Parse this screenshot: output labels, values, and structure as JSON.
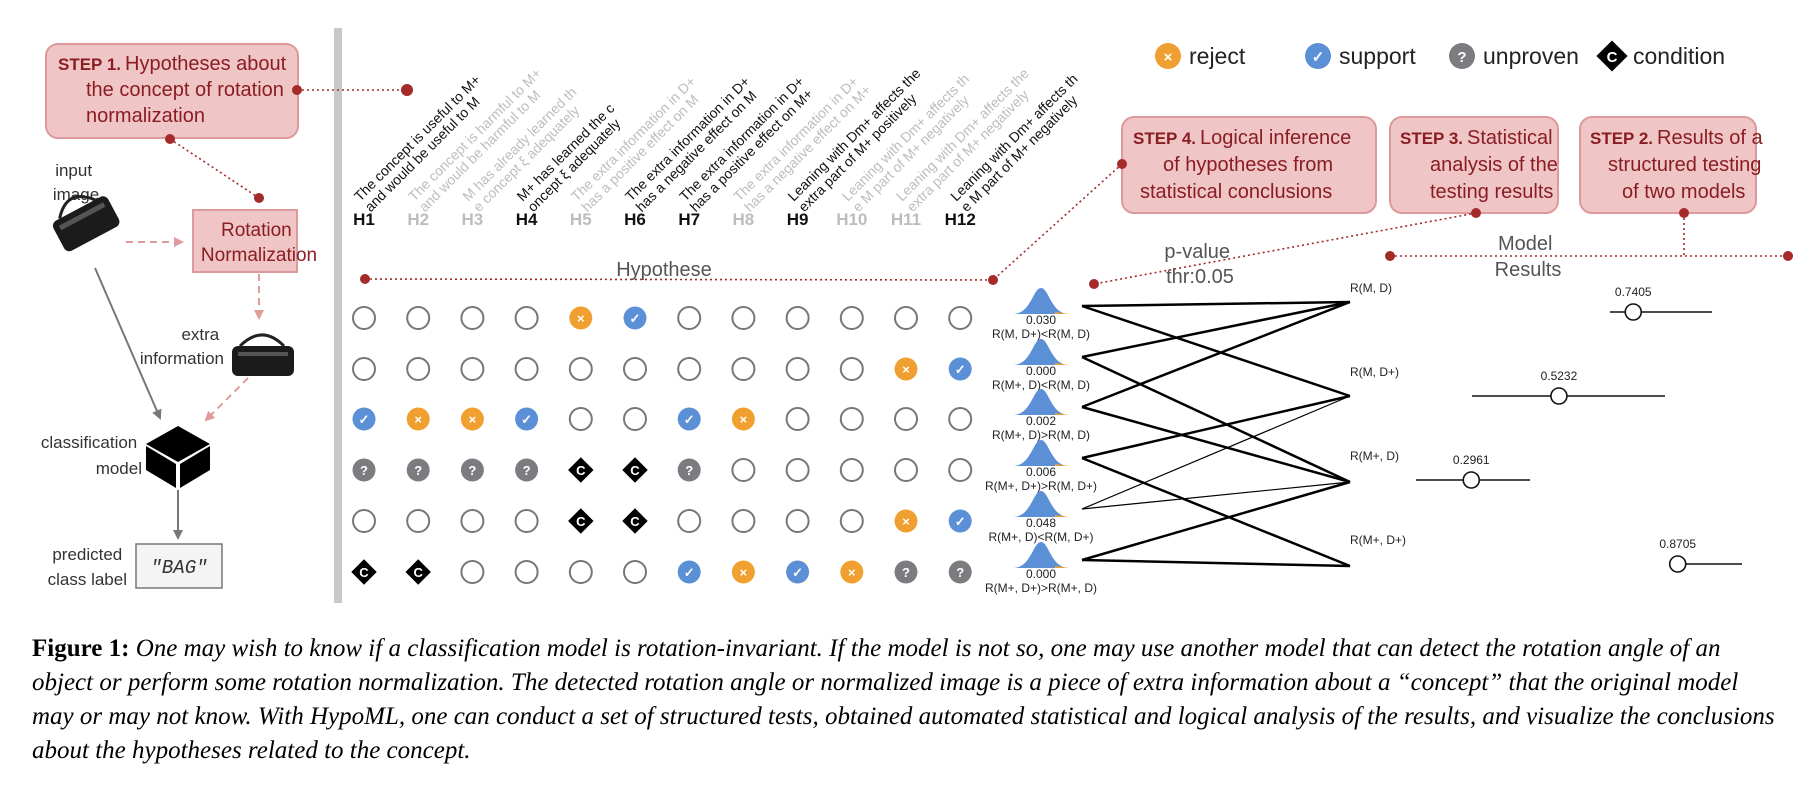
{
  "figure": {
    "legend": [
      {
        "key": "reject",
        "label": "reject",
        "glyph": "×",
        "color": "#f0a030"
      },
      {
        "key": "support",
        "label": "support",
        "glyph": "✓",
        "color": "#5b8fd6"
      },
      {
        "key": "unproven",
        "label": "unproven",
        "glyph": "?",
        "color": "#7c7c80"
      },
      {
        "key": "condition",
        "label": "condition",
        "glyph": "C",
        "color": "#000000"
      }
    ],
    "steps": {
      "step1": {
        "num": "STEP 1.",
        "lines": [
          "Hypotheses about",
          "the concept of rotation",
          "normalization"
        ]
      },
      "step2": {
        "num": "STEP 2.",
        "lines": [
          "Results of a",
          "structured testing",
          "of two models"
        ]
      },
      "step3": {
        "num": "STEP 3.",
        "lines": [
          "Statistical",
          "analysis of the",
          "testing results"
        ]
      },
      "step4": {
        "num": "STEP 4.",
        "lines": [
          "Logical inference",
          "of hypotheses from",
          "statistical conclusions"
        ]
      }
    },
    "pipeline": {
      "input_image": [
        "input",
        "image"
      ],
      "rotation_box": [
        "Rotation",
        "Normalization"
      ],
      "extra_information": [
        "extra",
        "information"
      ],
      "classification_model": [
        "classification",
        "model"
      ],
      "predicted_label": [
        "predicted",
        "class label"
      ],
      "label_value": "\"BAG\""
    },
    "hypotheses": [
      {
        "id": "H1",
        "active": true,
        "text": [
          "The concept is useful to M+",
          "and would be useful to M"
        ]
      },
      {
        "id": "H2",
        "active": false,
        "text": [
          "The concept is harmful to M+",
          "and would be harmful to M"
        ]
      },
      {
        "id": "H3",
        "active": false,
        "text": [
          "M has already learned th",
          "e concept ξ adequately"
        ]
      },
      {
        "id": "H4",
        "active": true,
        "text": [
          "M+ has learned the c",
          "oncept ξ adequately"
        ]
      },
      {
        "id": "H5",
        "active": false,
        "text": [
          "The extra information in D+",
          "has a positive effect on M"
        ]
      },
      {
        "id": "H6",
        "active": true,
        "text": [
          "The extra information in D+",
          "has a negative effect on M"
        ]
      },
      {
        "id": "H7",
        "active": true,
        "text": [
          "The extra information in D+",
          "has a positive effect on M+"
        ]
      },
      {
        "id": "H8",
        "active": false,
        "text": [
          "The extra information in D+",
          "has a negative effect on M+"
        ]
      },
      {
        "id": "H9",
        "active": true,
        "text": [
          "Leaning with Dm+ affects the",
          "extra part of M+ positively"
        ]
      },
      {
        "id": "H10",
        "active": false,
        "text": [
          "Leaning with Dm+ affects th",
          "e M part of M+ negatively"
        ]
      },
      {
        "id": "H11",
        "active": false,
        "text": [
          "Leaning with Dm+ affects the",
          "extra part of M+ negatively"
        ]
      },
      {
        "id": "H12",
        "active": true,
        "text": [
          "Leaning with Dm+ affects th",
          "e M part of M+ negatively"
        ]
      }
    ],
    "hypothese_label": "Hypothese",
    "grid": [
      [
        "o",
        "o",
        "o",
        "o",
        "x",
        "v",
        "o",
        "o",
        "o",
        "o",
        "o",
        "o"
      ],
      [
        "o",
        "o",
        "o",
        "o",
        "o",
        "o",
        "o",
        "o",
        "o",
        "o",
        "x",
        "v"
      ],
      [
        "v",
        "x",
        "x",
        "v",
        "o",
        "o",
        "v",
        "x",
        "o",
        "o",
        "o",
        "o"
      ],
      [
        "q",
        "q",
        "q",
        "q",
        "c",
        "c",
        "q",
        "o",
        "o",
        "o",
        "o",
        "o"
      ],
      [
        "o",
        "o",
        "o",
        "o",
        "c",
        "c",
        "o",
        "o",
        "o",
        "o",
        "x",
        "v"
      ],
      [
        "c",
        "c",
        "o",
        "o",
        "o",
        "o",
        "v",
        "x",
        "v",
        "x",
        "q",
        "q"
      ]
    ],
    "pvalue_header": [
      "p-value",
      "thr:0.05"
    ],
    "tests": [
      {
        "p": "0.030",
        "label": "R(M, D+)<R(M, D)"
      },
      {
        "p": "0.000",
        "label": "R(M+, D)<R(M, D)"
      },
      {
        "p": "0.002",
        "label": "R(M+, D)>R(M, D)"
      },
      {
        "p": "0.006",
        "label": "R(M+, D+)>R(M, D+)"
      },
      {
        "p": "0.048",
        "label": "R(M+, D)<R(M, D+)"
      },
      {
        "p": "0.000",
        "label": "R(M+, D+)>R(M+, D)"
      }
    ],
    "model_results_header": [
      "Model",
      "Results"
    ],
    "models": [
      {
        "label": "R(M, D)",
        "value": "0.7405"
      },
      {
        "label": "R(M, D+)",
        "value": "0.5232"
      },
      {
        "label": "R(M+, D)",
        "value": "0.2961"
      },
      {
        "label": "R(M+, D+)",
        "value": "0.8705"
      }
    ]
  },
  "caption": {
    "label": "Figure 1:",
    "text": "One may wish to know if a classification model is rotation-invariant. If the model is not so, one may use another model that can detect the rotation angle of an object or perform some rotation normalization. The detected rotation angle or normalized image is a piece of extra information about a “concept” that the original model may or may not know. With HypoML, one can conduct a set of structured tests, obtained automated statistical and logical analysis of the results, and visualize the conclusions about the hypotheses related to the concept."
  }
}
